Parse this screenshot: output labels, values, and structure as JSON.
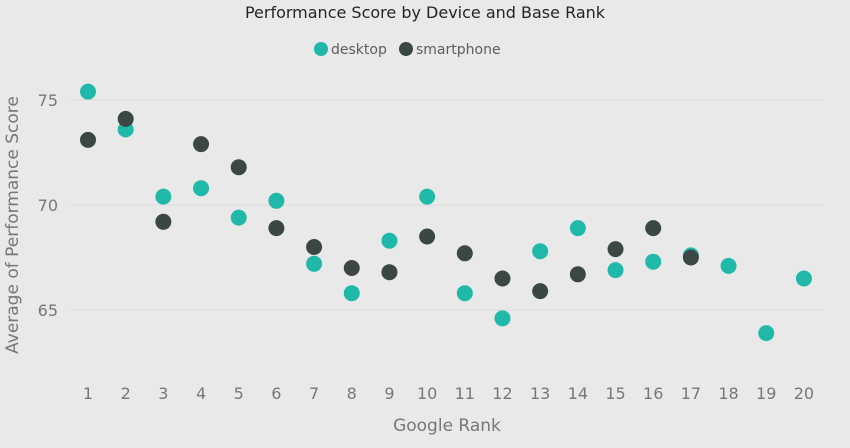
{
  "chart_data": {
    "type": "scatter",
    "title": "Performance Score by Device and Base Rank",
    "xlabel": "Google Rank",
    "ylabel": "Average of Performance Score",
    "x": [
      1,
      2,
      3,
      4,
      5,
      6,
      7,
      8,
      9,
      10,
      11,
      12,
      13,
      14,
      15,
      16,
      17,
      18,
      19,
      20
    ],
    "x_ticks": [
      "1",
      "2",
      "3",
      "4",
      "5",
      "6",
      "7",
      "8",
      "9",
      "10",
      "11",
      "12",
      "13",
      "14",
      "15",
      "16",
      "17",
      "18",
      "19",
      "20"
    ],
    "y_ticks": [
      "65",
      "70",
      "75"
    ],
    "ylim": [
      61.5,
      78.5
    ],
    "grid": true,
    "legend_position": "top-center",
    "series": [
      {
        "name": "desktop",
        "color": "#1fb8a9",
        "values": [
          75.4,
          73.6,
          70.4,
          70.8,
          69.4,
          70.2,
          67.2,
          65.8,
          68.3,
          70.4,
          65.8,
          64.6,
          67.8,
          68.9,
          66.9,
          67.3,
          67.6,
          67.1,
          63.9,
          66.5
        ]
      },
      {
        "name": "smartphone",
        "color": "#3b4745",
        "values": [
          73.1,
          74.1,
          69.2,
          72.9,
          71.8,
          68.9,
          68.0,
          67.0,
          66.8,
          68.5,
          67.7,
          66.5,
          65.9,
          66.7,
          67.9,
          68.9,
          67.5,
          null,
          null,
          null
        ]
      }
    ]
  }
}
